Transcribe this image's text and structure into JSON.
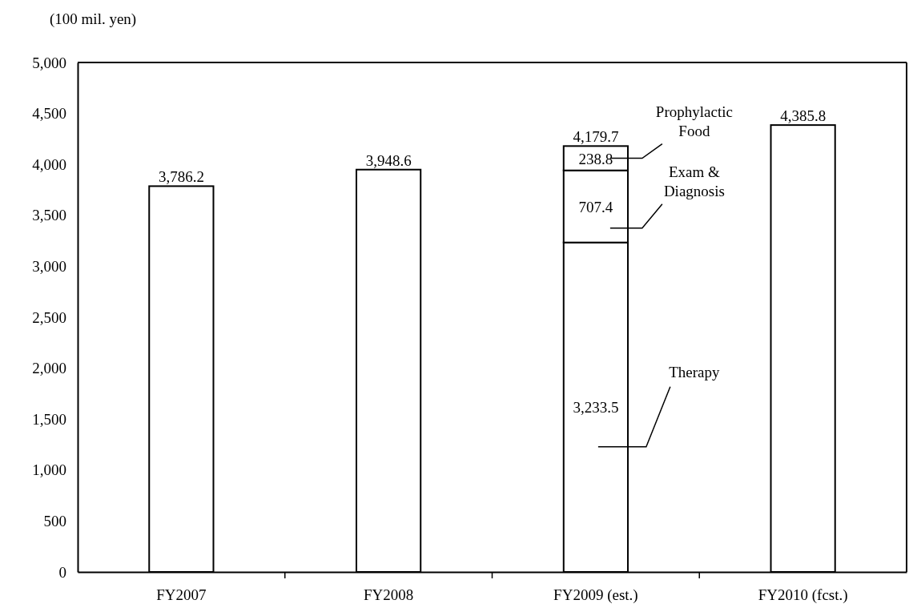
{
  "chart_data": {
    "type": "bar",
    "stacked": true,
    "ylabel": "(100 mil. yen)",
    "categories": [
      "FY2007",
      "FY2008",
      "FY2009 (est.)",
      "FY2010 (fcst.)"
    ],
    "series": [
      {
        "color": "#ffffff",
        "values": [
          3786.2,
          3948.6,
          3233.5,
          4385.8
        ],
        "value_labels": [
          null,
          null,
          "3,233.5",
          null
        ]
      },
      {
        "color": "#ffffff",
        "values": [
          null,
          null,
          707.4,
          null
        ],
        "value_labels": [
          null,
          null,
          "707.4",
          null
        ]
      },
      {
        "color": "#ffffff",
        "values": [
          null,
          null,
          238.8,
          null
        ],
        "value_labels": [
          null,
          null,
          "238.8",
          null
        ]
      }
    ],
    "totals": [
      "3,786.2",
      "3,948.6",
      "4,179.7",
      "4,385.8"
    ],
    "ylim": [
      0,
      5000
    ],
    "yticks": [
      0,
      500,
      {
        "value": 1000,
        "label": "1,000"
      },
      {
        "value": 1500,
        "label": "1,500"
      },
      {
        "value": 2000,
        "label": "2,000"
      },
      {
        "value": 2500,
        "label": "2,500"
      },
      {
        "value": 3000,
        "label": "3,000"
      },
      {
        "value": 3500,
        "label": "3,500"
      },
      {
        "value": 4000,
        "label": "4,000"
      },
      {
        "value": 4500,
        "label": "4,500"
      },
      {
        "value": 5000,
        "label": "5,000"
      }
    ],
    "grid": false,
    "annotations": [
      "Therapy",
      "Exam &\nDiagnosis",
      "Prophylactic\nFood"
    ]
  }
}
